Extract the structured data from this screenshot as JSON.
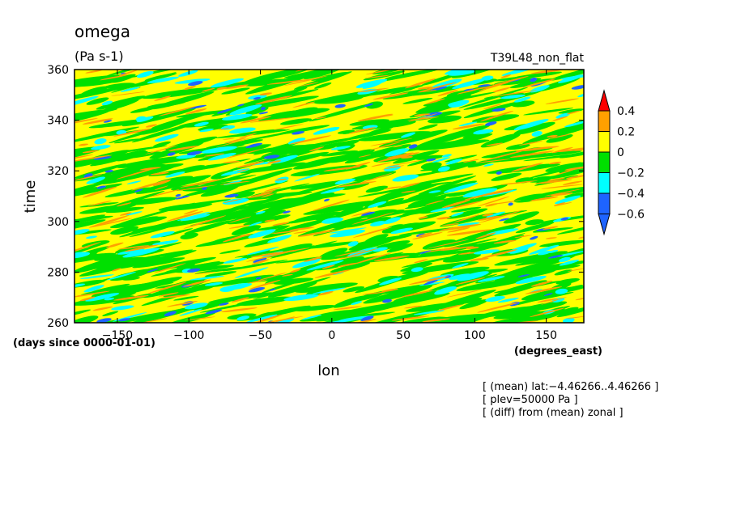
{
  "chart_data": {
    "type": "heatmap",
    "title": "omega",
    "subtitle": "(Pa s-1)",
    "experiment": "T39L48_non_flat",
    "xlabel": "lon",
    "xunits": "(degrees_east)",
    "ylabel": "time",
    "yunits": "(days since 0000-01-01)",
    "xlim": [
      -180,
      176.25
    ],
    "ylim": [
      260,
      360
    ],
    "x_ticks": [
      -150,
      -100,
      -50,
      0,
      50,
      100,
      150
    ],
    "x_tick_labels": [
      "−150",
      "−100",
      "−50",
      "0",
      "50",
      "100",
      "150"
    ],
    "y_ticks": [
      260,
      280,
      300,
      320,
      340,
      360
    ],
    "y_tick_labels": [
      "260",
      "280",
      "300",
      "320",
      "340",
      "360"
    ],
    "colorbar": {
      "levels": [
        -0.6,
        -0.4,
        -0.2,
        0,
        0.2,
        0.4
      ],
      "labels": [
        "−0.6",
        "−0.4",
        "−0.2",
        "0",
        "0.2",
        "0.4"
      ],
      "colors": [
        "#1e64ff",
        "#1e64ff",
        "#00ffff",
        "#00e000",
        "#ffff00",
        "#ffa000",
        "#ff0000"
      ]
    },
    "value_range": [
      -0.7,
      0.45
    ],
    "dominant_value": "0 to 0.2",
    "notes": [
      "[ (mean) lat:−4.46266..4.46266 ]",
      "[ plev=50000 Pa ]",
      "[ (diff) from (mean) zonal ]"
    ]
  }
}
